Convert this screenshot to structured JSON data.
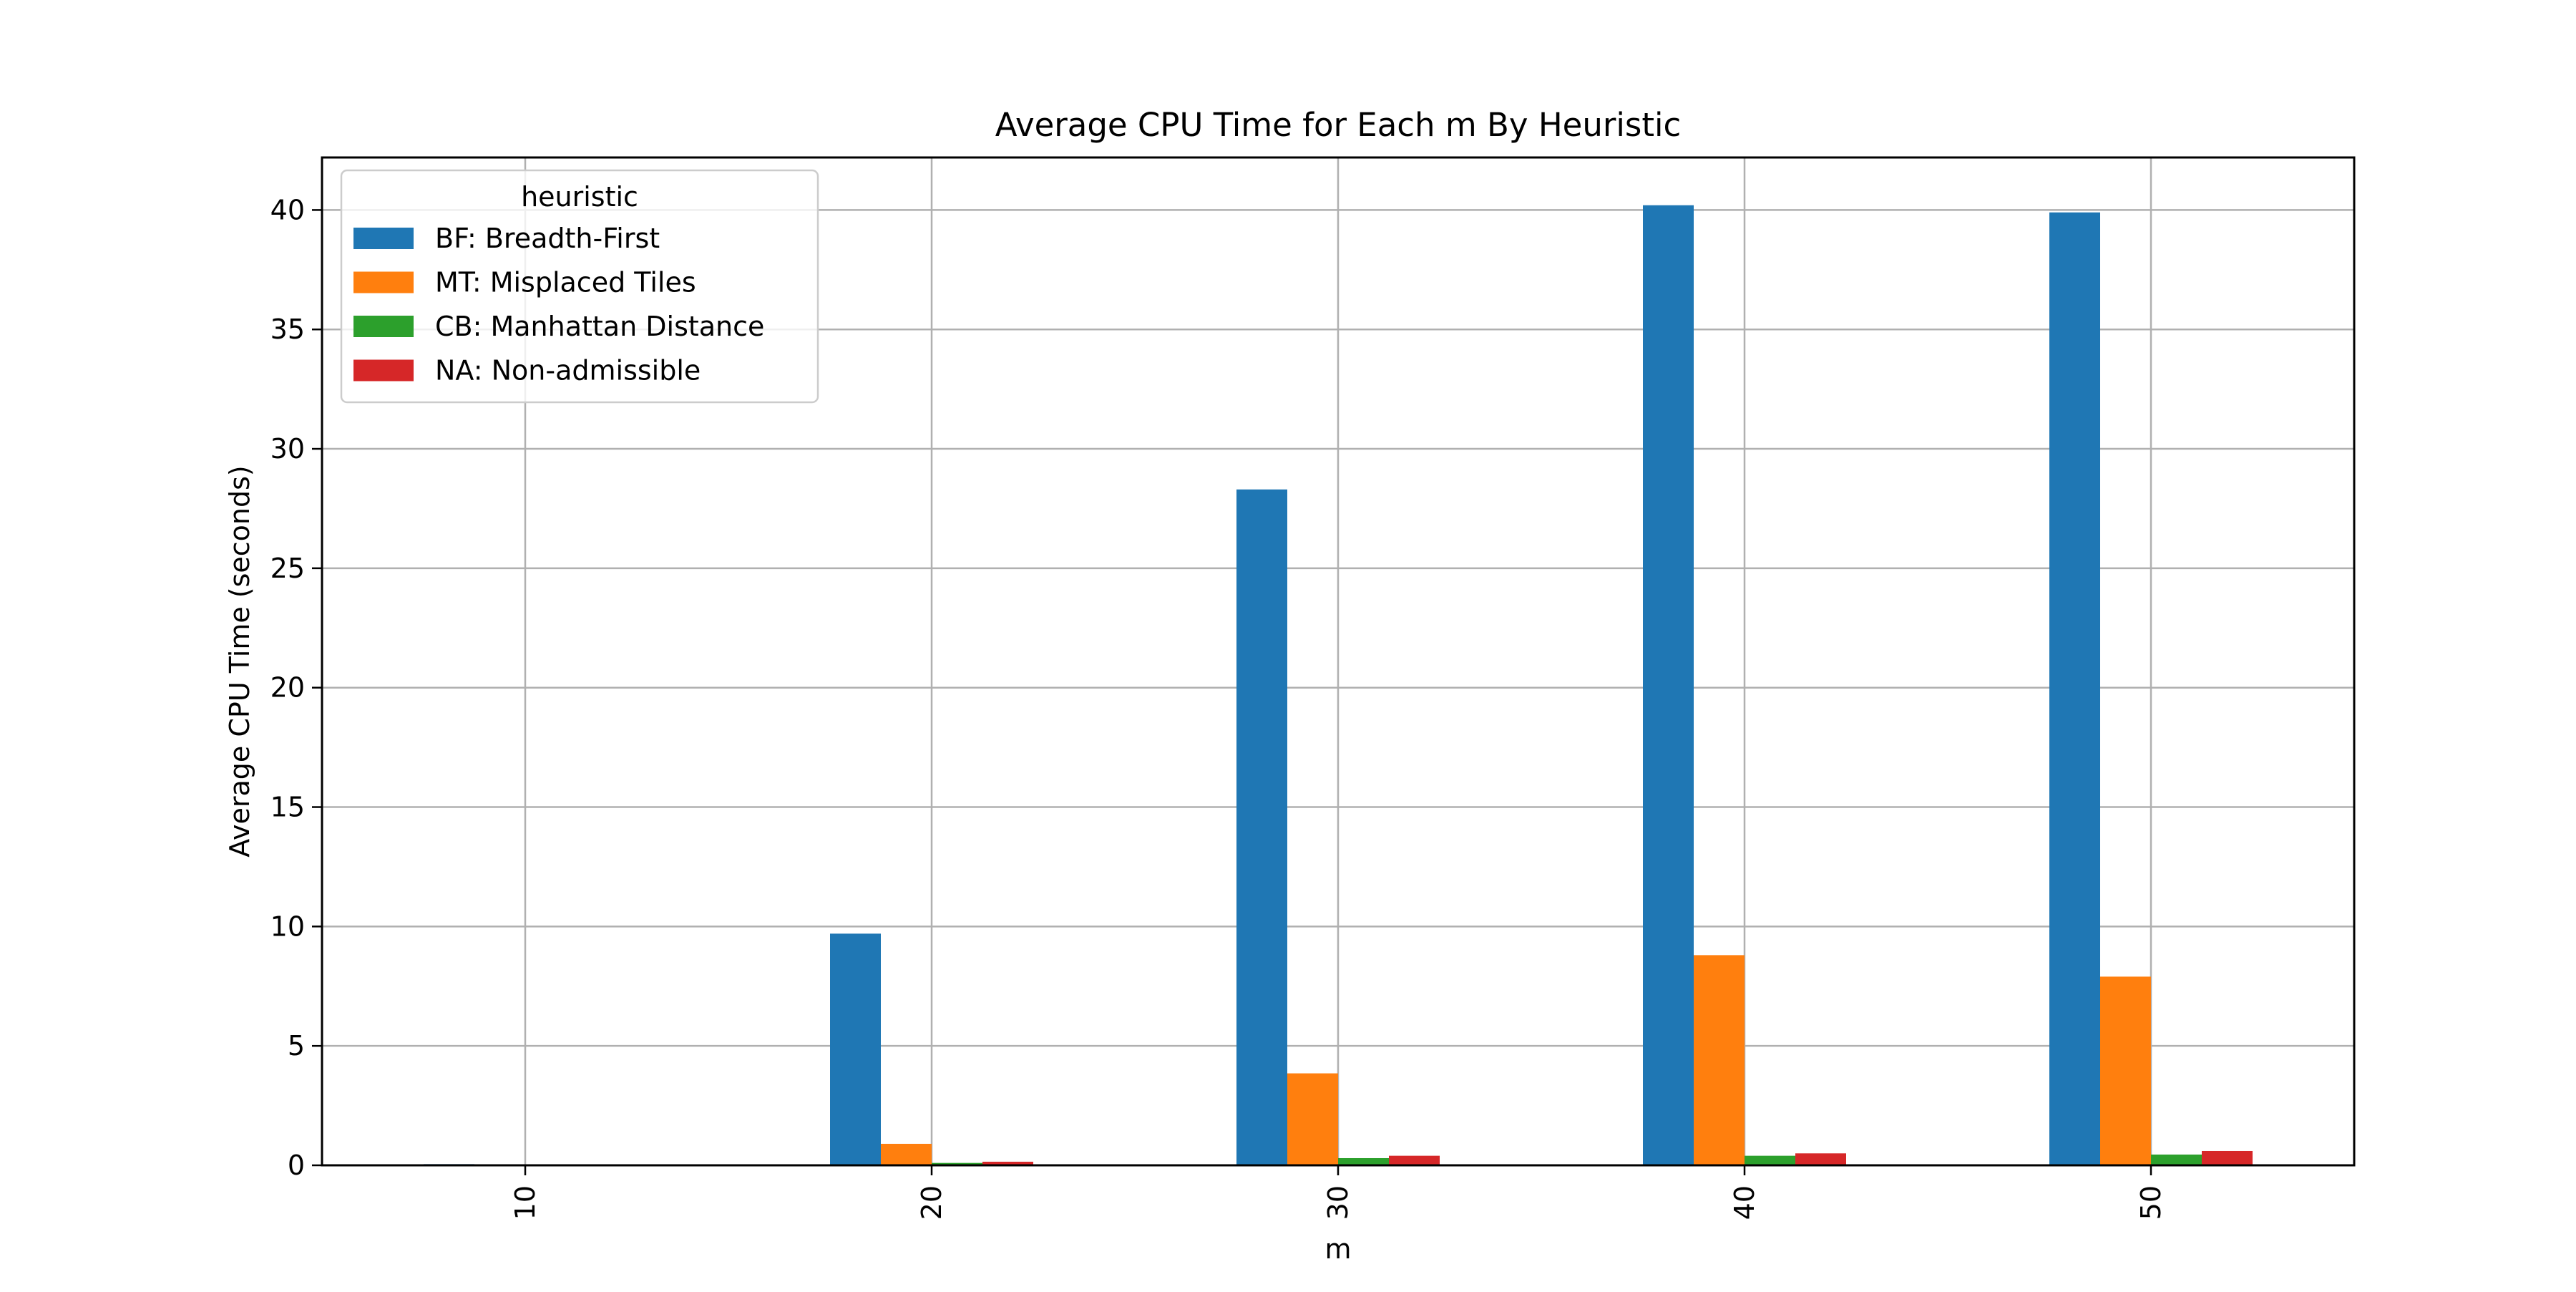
{
  "chart_data": {
    "type": "bar",
    "title": "Average CPU Time for Each m By Heuristic",
    "xlabel": "m",
    "ylabel": "Average CPU Time (seconds)",
    "categories": [
      "10",
      "20",
      "30",
      "40",
      "50"
    ],
    "ylim": [
      0,
      42.2
    ],
    "yticks": [
      0,
      5,
      10,
      15,
      20,
      25,
      30,
      35,
      40
    ],
    "grid": true,
    "legend": {
      "title": "heuristic",
      "placement": "top-left"
    },
    "series": [
      {
        "name": "BF: Breadth-First",
        "color": "#1f77b4",
        "values": [
          0.05,
          9.7,
          28.3,
          40.2,
          39.9
        ]
      },
      {
        "name": "MT: Misplaced Tiles",
        "color": "#ff7f0e",
        "values": [
          0.01,
          0.9,
          3.85,
          8.8,
          7.9
        ]
      },
      {
        "name": "CB: Manhattan Distance",
        "color": "#2ca02c",
        "values": [
          0.0,
          0.1,
          0.3,
          0.4,
          0.45
        ]
      },
      {
        "name": "NA: Non-admissible",
        "color": "#d62728",
        "values": [
          0.0,
          0.15,
          0.4,
          0.5,
          0.6
        ]
      }
    ]
  }
}
